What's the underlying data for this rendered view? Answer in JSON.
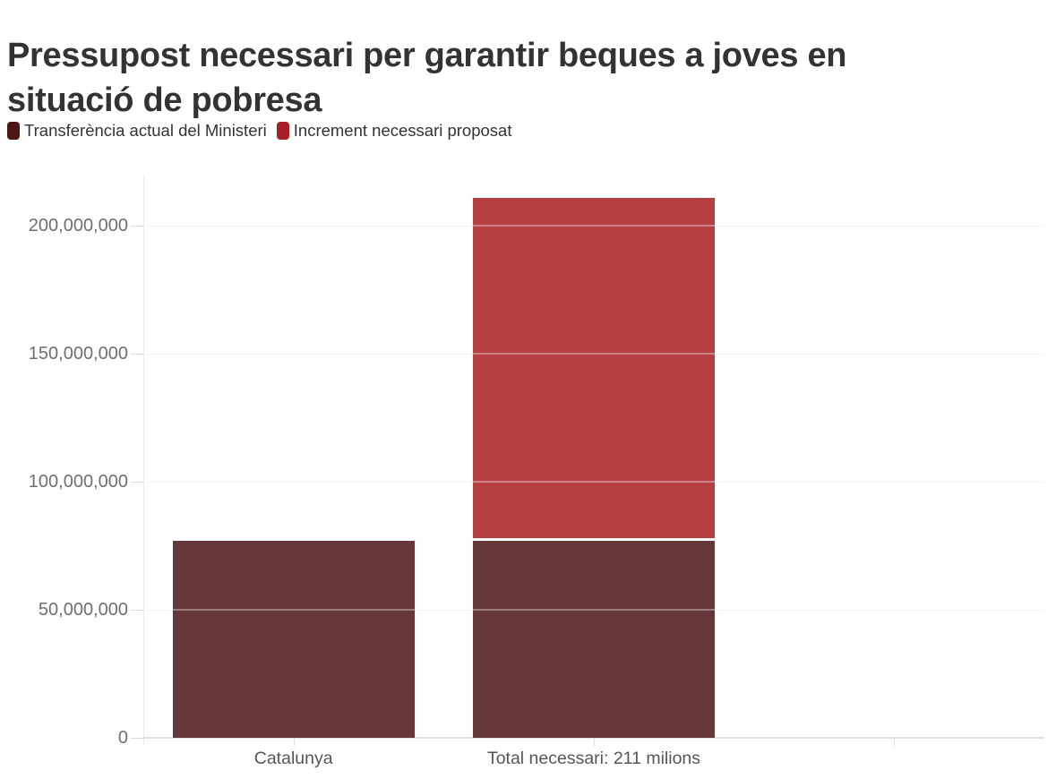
{
  "header": {
    "title": "Pressupost necessari per garantir beques a joves en situació de pobresa",
    "title_lines": [
      "Pressupost necessari per garantir beques a joves en",
      "situació de pobresa"
    ]
  },
  "legend": {
    "items": [
      {
        "label": "Transferència actual del Ministeri",
        "color": "#4f1618"
      },
      {
        "label": "Increment necessari proposat",
        "color": "#a71f25"
      }
    ]
  },
  "chart_data": {
    "type": "bar",
    "subtype": "stacked-column",
    "title": "Pressupost necessari per garantir beques a joves en situació de pobresa",
    "categories": [
      "Catalunya",
      "Total necessari: 211 milions",
      ""
    ],
    "series": [
      {
        "name": "Transferència actual del Ministeri",
        "legend_color": "#4f1618",
        "fill": "#663738",
        "values": [
          77000000,
          77000000,
          null
        ]
      },
      {
        "name": "Increment necessari proposat",
        "legend_color": "#a71f25",
        "fill": "#b43e40",
        "values": [
          null,
          134000000,
          null
        ]
      }
    ],
    "totals": [
      77000000,
      211000000,
      null
    ],
    "y_axis": {
      "ticks": [
        0,
        50000000,
        100000000,
        150000000,
        200000000
      ],
      "tick_labels": [
        "0",
        "50,000,000",
        "100,000,000",
        "150,000,000",
        "200,000,000"
      ],
      "min": 0,
      "max": 220000000
    },
    "grid": true,
    "legend_position": "top",
    "xlabel": "",
    "ylabel": ""
  },
  "colors": {
    "title_text": "#333333",
    "legend_text": "#333333",
    "y_axis_text": "#6f6f6f",
    "x_axis_text": "#565656",
    "gridline": "#ebebeb",
    "baseline": "#e0e0e0",
    "background": "#ffffff",
    "segment_separator": "#ffffff"
  }
}
